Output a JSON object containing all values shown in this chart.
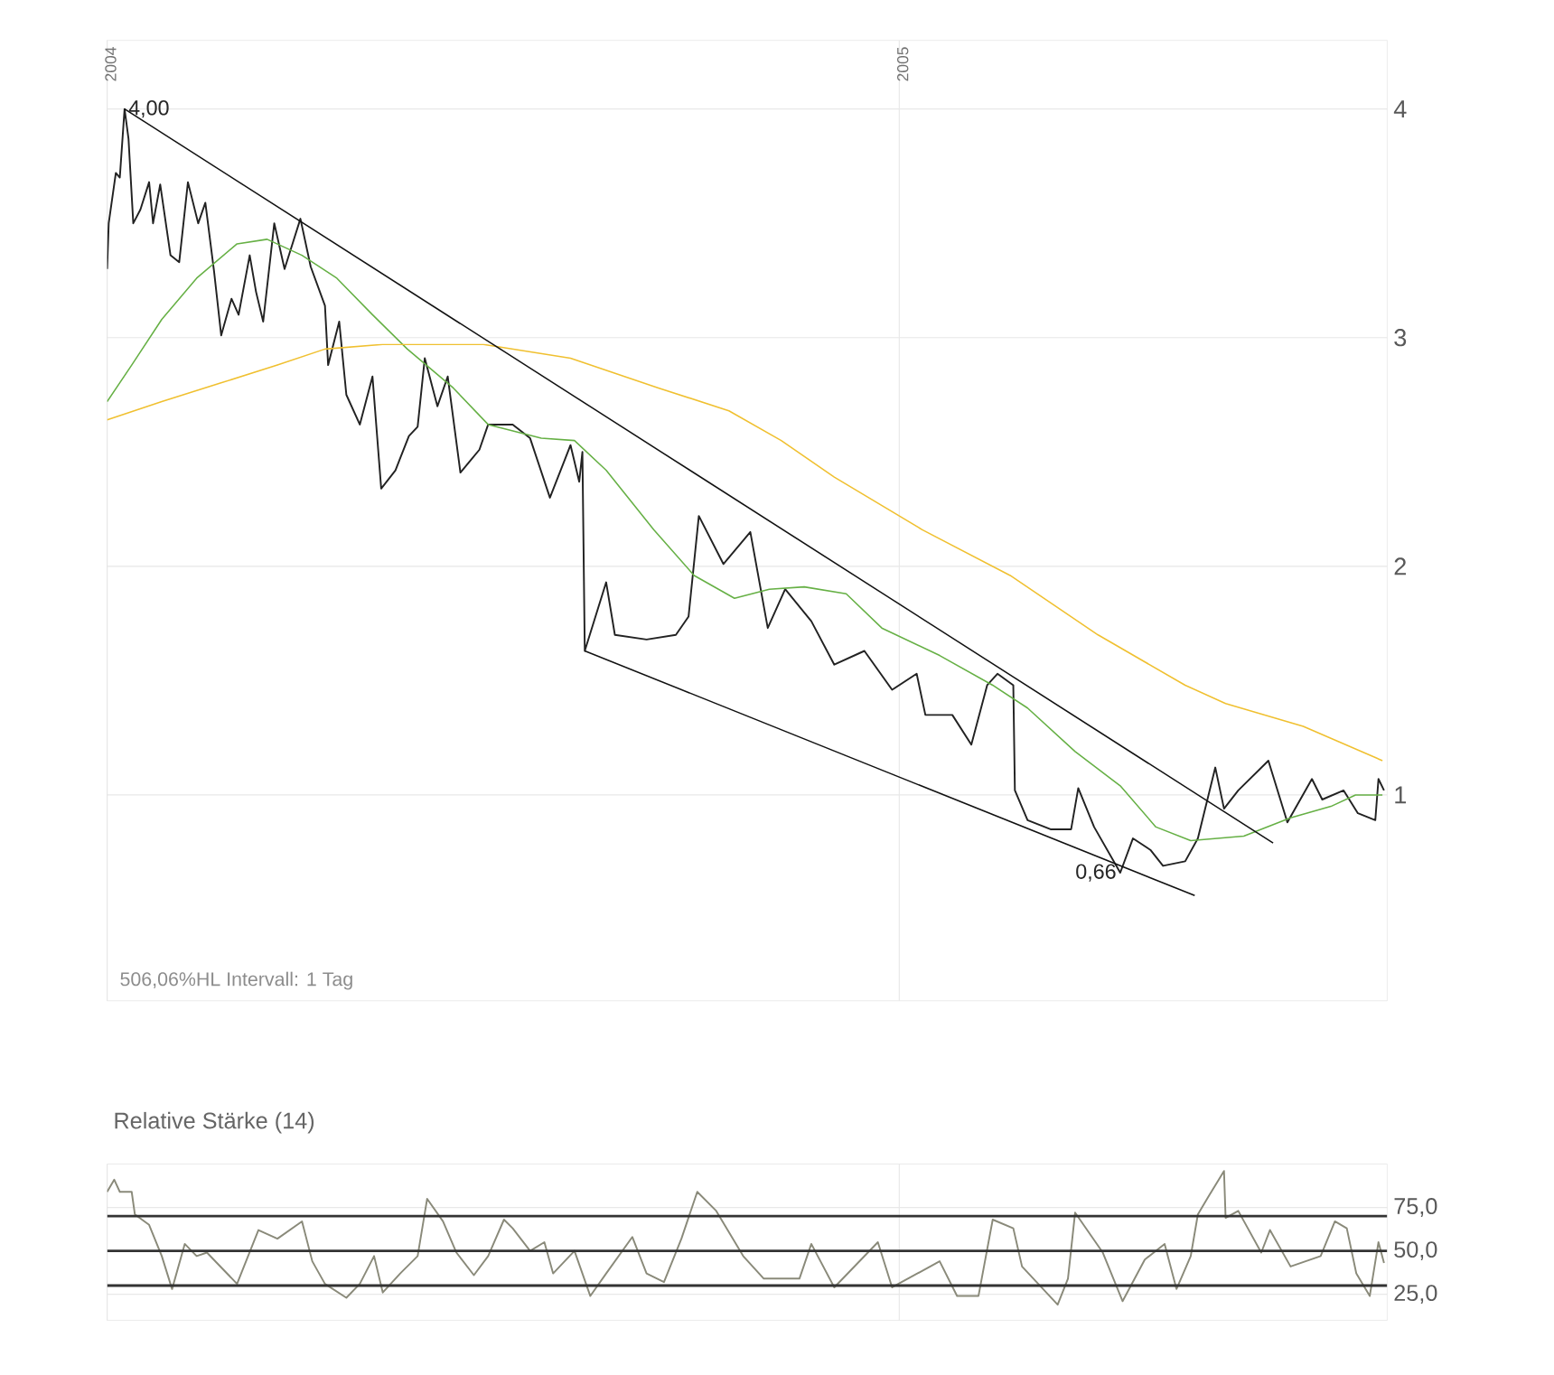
{
  "chart_data": [
    {
      "type": "line",
      "xlim": [
        2004,
        2005.616
      ],
      "ylim": [
        0.1,
        4.3
      ],
      "xticks": [
        2004,
        2005
      ],
      "yticks": [
        1,
        2,
        3,
        4
      ],
      "grid": true,
      "annotations": [
        {
          "text": "4,00",
          "x": 2004.022,
          "y": 4.0
        },
        {
          "text": "0,66",
          "x": 2005.279,
          "y": 0.66
        },
        "506,06%HL Intervall: 1 Tag"
      ],
      "series": [
        {
          "color": "#222222",
          "x": [
            2004.0,
            2004.002,
            2004.011,
            2004.016,
            2004.022,
            2004.027,
            2004.033,
            2004.042,
            2004.053,
            2004.058,
            2004.067,
            2004.08,
            2004.091,
            2004.102,
            2004.115,
            2004.124,
            2004.135,
            2004.144,
            2004.157,
            2004.166,
            2004.18,
            2004.188,
            2004.197,
            2004.211,
            2004.224,
            2004.244,
            2004.257,
            2004.275,
            2004.279,
            2004.293,
            2004.302,
            2004.319,
            2004.335,
            2004.346,
            2004.364,
            2004.381,
            2004.392,
            2004.401,
            2004.417,
            2004.43,
            2004.446,
            2004.47,
            2004.481,
            2004.512,
            2004.534,
            2004.559,
            2004.585,
            2004.596,
            2004.6,
            2004.603,
            2004.63,
            2004.641,
            2004.681,
            2004.718,
            2004.734,
            2004.747,
            2004.778,
            2004.812,
            2004.834,
            2004.856,
            2004.889,
            2004.918,
            2004.956,
            2004.991,
            2005.022,
            2005.033,
            2005.067,
            2005.091,
            2005.111,
            2005.124,
            2005.144,
            2005.146,
            2005.162,
            2005.191,
            2005.217,
            2005.226,
            2005.246,
            2005.279,
            2005.295,
            2005.317,
            2005.333,
            2005.361,
            2005.377,
            2005.399,
            2005.41,
            2005.428,
            2005.466,
            2005.49,
            2005.521,
            2005.534,
            2005.561,
            2005.579,
            2005.601,
            2005.605,
            2005.612
          ],
          "values": [
            3.3,
            3.5,
            3.72,
            3.7,
            4.0,
            3.87,
            3.5,
            3.56,
            3.68,
            3.5,
            3.67,
            3.36,
            3.33,
            3.68,
            3.5,
            3.59,
            3.29,
            3.01,
            3.17,
            3.1,
            3.36,
            3.2,
            3.07,
            3.5,
            3.3,
            3.52,
            3.31,
            3.14,
            2.88,
            3.07,
            2.75,
            2.62,
            2.83,
            2.34,
            2.42,
            2.57,
            2.61,
            2.91,
            2.7,
            2.83,
            2.41,
            2.51,
            2.62,
            2.62,
            2.56,
            2.3,
            2.53,
            2.37,
            2.5,
            1.63,
            1.93,
            1.7,
            1.68,
            1.7,
            1.78,
            2.22,
            2.01,
            2.15,
            1.73,
            1.9,
            1.76,
            1.57,
            1.63,
            1.46,
            1.53,
            1.35,
            1.35,
            1.22,
            1.48,
            1.53,
            1.48,
            1.02,
            0.89,
            0.85,
            0.85,
            1.03,
            0.86,
            0.66,
            0.81,
            0.76,
            0.69,
            0.71,
            0.81,
            1.12,
            0.94,
            1.02,
            1.15,
            0.88,
            1.07,
            0.98,
            1.02,
            0.92,
            0.89,
            1.07,
            1.02
          ]
        },
        {
          "color": "#66b045",
          "x": [
            2004.0,
            2004.031,
            2004.069,
            2004.113,
            2004.164,
            2004.202,
            2004.246,
            2004.29,
            2004.335,
            2004.379,
            2004.437,
            2004.481,
            2004.548,
            2004.59,
            2004.63,
            2004.69,
            2004.741,
            2004.792,
            2004.836,
            2004.88,
            2004.933,
            2004.978,
            2005.051,
            2005.118,
            2005.162,
            2005.222,
            2005.279,
            2005.324,
            2005.368,
            2005.435,
            2005.494,
            2005.545,
            2005.576,
            2005.61
          ],
          "values": [
            2.72,
            2.88,
            3.08,
            3.26,
            3.41,
            3.43,
            3.36,
            3.26,
            3.1,
            2.95,
            2.78,
            2.62,
            2.56,
            2.55,
            2.42,
            2.16,
            1.96,
            1.86,
            1.9,
            1.91,
            1.88,
            1.73,
            1.61,
            1.48,
            1.38,
            1.19,
            1.04,
            0.86,
            0.8,
            0.82,
            0.9,
            0.95,
            1.0,
            1.0
          ]
        },
        {
          "color": "#f0c030",
          "x": [
            2004.0,
            2004.069,
            2004.142,
            2004.215,
            2004.275,
            2004.348,
            2004.475,
            2004.585,
            2004.696,
            2004.785,
            2004.851,
            2004.918,
            2005.029,
            2005.14,
            2005.251,
            2005.361,
            2005.412,
            2005.51,
            2005.61
          ],
          "values": [
            2.64,
            2.72,
            2.8,
            2.88,
            2.95,
            2.97,
            2.97,
            2.91,
            2.78,
            2.68,
            2.55,
            2.39,
            2.16,
            1.96,
            1.7,
            1.48,
            1.4,
            1.3,
            1.15
          ]
        },
        {
          "color": "#111111",
          "x": [
            2004.022,
            2005.472
          ],
          "values": [
            4.0,
            0.79
          ]
        },
        {
          "color": "#111111",
          "x": [
            2004.603,
            2005.373
          ],
          "values": [
            1.63,
            0.56
          ]
        }
      ]
    },
    {
      "type": "line",
      "title": "Relative Stärke (14)",
      "xlim": [
        2004,
        2005.616
      ],
      "ylim": [
        10,
        100
      ],
      "xticks": [
        2004,
        2005
      ],
      "tick_labels": "y",
      "yticks": [
        {
          "value": 25,
          "label": "25,0"
        },
        {
          "value": 50,
          "label": "50,0"
        },
        {
          "value": 75,
          "label": "75,0"
        }
      ],
      "grid": true,
      "ref_lines": [
        {
          "axis": "y",
          "value": 70,
          "color": "#333333"
        },
        {
          "axis": "y",
          "value": 50,
          "color": "#333333"
        },
        {
          "axis": "y",
          "value": 30,
          "color": "#333333"
        }
      ],
      "series": [
        {
          "color": "#8a8a7a",
          "x": [
            2004.0,
            2004.009,
            2004.016,
            2004.031,
            2004.035,
            2004.053,
            2004.069,
            2004.082,
            2004.098,
            2004.113,
            2004.126,
            2004.164,
            2004.191,
            2004.215,
            2004.246,
            2004.259,
            2004.275,
            2004.302,
            2004.319,
            2004.337,
            2004.348,
            2004.37,
            2004.392,
            2004.404,
            2004.424,
            2004.441,
            2004.463,
            2004.481,
            2004.501,
            2004.512,
            2004.534,
            2004.552,
            2004.563,
            2004.59,
            2004.61,
            2004.63,
            2004.663,
            2004.681,
            2004.703,
            2004.725,
            2004.745,
            2004.769,
            2004.803,
            2004.829,
            2004.874,
            2004.889,
            2004.918,
            2004.973,
            2004.991,
            2005.051,
            2005.073,
            2005.1,
            2005.118,
            2005.144,
            2005.155,
            2005.2,
            2005.213,
            2005.222,
            2005.257,
            2005.282,
            2005.31,
            2005.335,
            2005.35,
            2005.368,
            2005.377,
            2005.39,
            2005.41,
            2005.412,
            2005.428,
            2005.457,
            2005.468,
            2005.494,
            2005.532,
            2005.55,
            2005.565,
            2005.577,
            2005.594,
            2005.605,
            2005.612
          ],
          "values": [
            84,
            91,
            84,
            84,
            71,
            65,
            47,
            28,
            54,
            47,
            49,
            31,
            62,
            57,
            67,
            44,
            31,
            23,
            31,
            47,
            26,
            37,
            47,
            80,
            67,
            49,
            36,
            47,
            68,
            63,
            50,
            55,
            37,
            50,
            24,
            37,
            58,
            37,
            32,
            57,
            84,
            73,
            47,
            34,
            34,
            54,
            29,
            55,
            29,
            44,
            24,
            24,
            68,
            63,
            41,
            19,
            34,
            72,
            49,
            21,
            45,
            54,
            28,
            47,
            71,
            81,
            96,
            69,
            73,
            49,
            62,
            41,
            47,
            67,
            63,
            37,
            24,
            55,
            43
          ]
        }
      ]
    }
  ]
}
